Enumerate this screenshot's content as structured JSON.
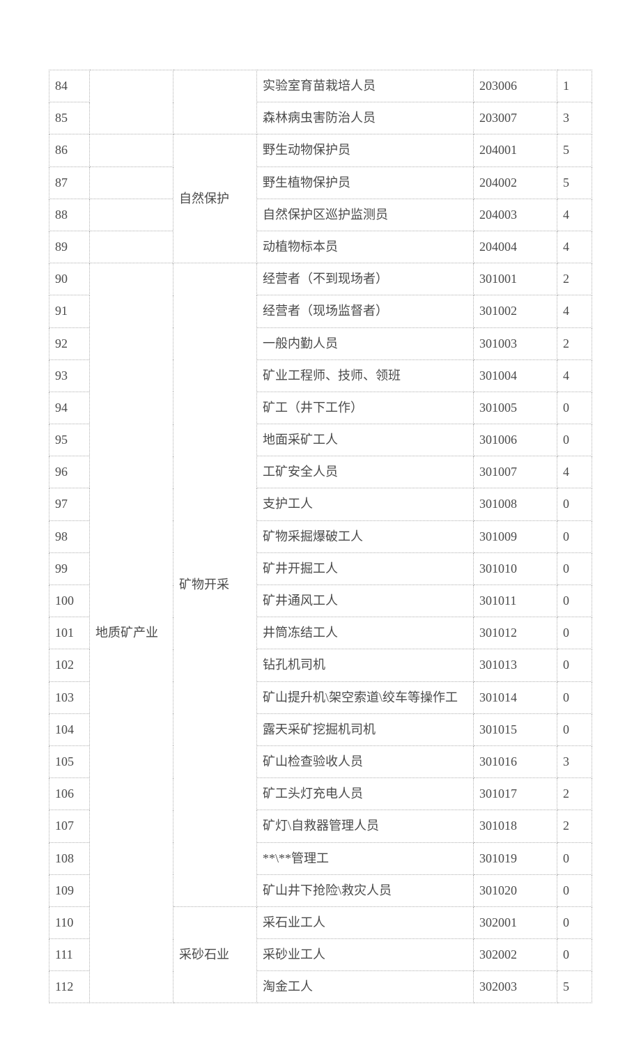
{
  "table": {
    "columns": [
      "idx",
      "cat1",
      "cat2",
      "job",
      "code",
      "level"
    ],
    "rows": [
      {
        "idx": "84",
        "cat1": "",
        "cat2": "",
        "job": "实验室育苗栽培人员",
        "code": "203006",
        "level": "1"
      },
      {
        "idx": "85",
        "cat1": "",
        "cat2": "",
        "job": "森林病虫害防治人员",
        "code": "203007",
        "level": "3"
      },
      {
        "idx": "86",
        "cat1": "",
        "cat2": "",
        "job": "野生动物保护员",
        "code": "204001",
        "level": "5"
      },
      {
        "idx": "87",
        "cat1": "",
        "cat2": "",
        "job": "野生植物保护员",
        "code": "204002",
        "level": "5"
      },
      {
        "idx": "88",
        "cat1": "",
        "cat2": "",
        "job": "自然保护区巡护监测员",
        "code": "204003",
        "level": "4"
      },
      {
        "idx": "89",
        "cat1": "",
        "cat2": "",
        "job": "动植物标本员",
        "code": "204004",
        "level": "4"
      },
      {
        "idx": "90",
        "cat1": "",
        "cat2": "",
        "job": "经营者（不到现场者）",
        "code": "301001",
        "level": "2"
      },
      {
        "idx": "91",
        "cat1": "",
        "cat2": "",
        "job": "经营者（现场监督者）",
        "code": "301002",
        "level": "4"
      },
      {
        "idx": "92",
        "cat1": "",
        "cat2": "",
        "job": "一般内勤人员",
        "code": "301003",
        "level": "2"
      },
      {
        "idx": "93",
        "cat1": "",
        "cat2": "",
        "job": "矿业工程师、技师、领班",
        "code": "301004",
        "level": "4"
      },
      {
        "idx": "94",
        "cat1": "",
        "cat2": "",
        "job": "矿工（井下工作）",
        "code": "301005",
        "level": "0"
      },
      {
        "idx": "95",
        "cat1": "",
        "cat2": "",
        "job": "地面采矿工人",
        "code": "301006",
        "level": "0"
      },
      {
        "idx": "96",
        "cat1": "",
        "cat2": "",
        "job": "工矿安全人员",
        "code": "301007",
        "level": "4"
      },
      {
        "idx": "97",
        "cat1": "",
        "cat2": "",
        "job": "支护工人",
        "code": "301008",
        "level": "0"
      },
      {
        "idx": "98",
        "cat1": "",
        "cat2": "",
        "job": "矿物采掘爆破工人",
        "code": "301009",
        "level": "0"
      },
      {
        "idx": "99",
        "cat1": "",
        "cat2": "",
        "job": "矿井开掘工人",
        "code": "301010",
        "level": "0"
      },
      {
        "idx": "100",
        "cat1": "",
        "cat2": "",
        "job": "矿井通风工人",
        "code": "301011",
        "level": "0"
      },
      {
        "idx": "101",
        "cat1": "",
        "cat2": "",
        "job": "井筒冻结工人",
        "code": "301012",
        "level": "0"
      },
      {
        "idx": "102",
        "cat1": "",
        "cat2": "",
        "job": "钻孔机司机",
        "code": "301013",
        "level": "0"
      },
      {
        "idx": "103",
        "cat1": "",
        "cat2": "",
        "job": "矿山提升机\\架空索道\\绞车等操作工",
        "code": "301014",
        "level": "0"
      },
      {
        "idx": "104",
        "cat1": "",
        "cat2": "",
        "job": "露天采矿挖掘机司机",
        "code": "301015",
        "level": "0"
      },
      {
        "idx": "105",
        "cat1": "",
        "cat2": "",
        "job": "矿山检查验收人员",
        "code": "301016",
        "level": "3"
      },
      {
        "idx": "106",
        "cat1": "",
        "cat2": "",
        "job": "矿工头灯充电人员",
        "code": "301017",
        "level": "2"
      },
      {
        "idx": "107",
        "cat1": "",
        "cat2": "",
        "job": "矿灯\\自救器管理人员",
        "code": "301018",
        "level": "2"
      },
      {
        "idx": "108",
        "cat1": "",
        "cat2": "",
        "job": "**\\**管理工",
        "code": "301019",
        "level": "0"
      },
      {
        "idx": "109",
        "cat1": "",
        "cat2": "",
        "job": "矿山井下抢险\\救灾人员",
        "code": "301020",
        "level": "0"
      },
      {
        "idx": "110",
        "cat1": "",
        "cat2": "",
        "job": "采石业工人",
        "code": "302001",
        "level": "0"
      },
      {
        "idx": "111",
        "cat1": "",
        "cat2": "",
        "job": "采砂业工人",
        "code": "302002",
        "level": "0"
      },
      {
        "idx": "112",
        "cat1": "",
        "cat2": "",
        "job": "淘金工人",
        "code": "302003",
        "level": "5"
      }
    ],
    "merges": {
      "cat1": [
        {
          "start": 0,
          "span": 2,
          "label": ""
        },
        {
          "start": 6,
          "span": 23,
          "label": "地质矿产业"
        }
      ],
      "cat2": [
        {
          "start": 0,
          "span": 2,
          "label": ""
        },
        {
          "start": 2,
          "span": 4,
          "label": "自然保护"
        },
        {
          "start": 6,
          "span": 20,
          "label": "矿物开采"
        },
        {
          "start": 26,
          "span": 3,
          "label": "采砂石业"
        }
      ]
    }
  },
  "style": {
    "border_color": "#b0b0b0",
    "text_color": "#4a4a4a",
    "font_family": "SimSun",
    "font_size_pt": 14
  }
}
